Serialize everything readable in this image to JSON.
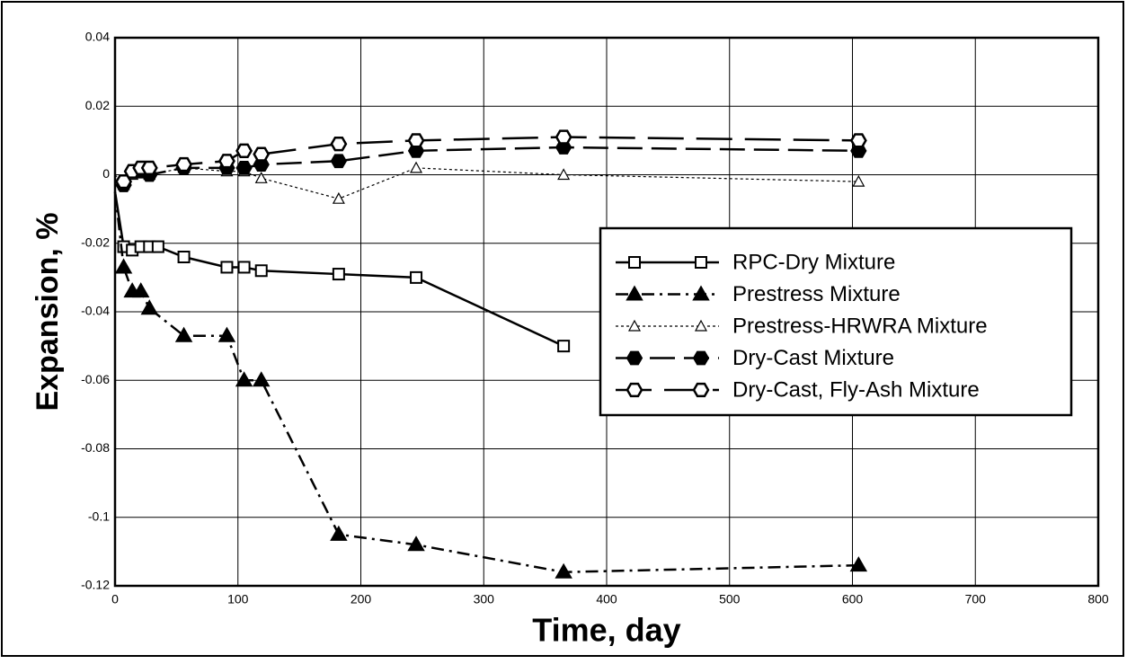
{
  "chart_data": {
    "type": "line",
    "xlabel": "Time, day",
    "ylabel": "Expansion, %",
    "xlim": [
      0,
      800
    ],
    "xticks": [
      0,
      100,
      200,
      300,
      400,
      500,
      600,
      700,
      800
    ],
    "ylim": [
      -0.12,
      0.04
    ],
    "yticks": [
      0.04,
      0.02,
      0,
      -0.02,
      -0.04,
      -0.06,
      -0.08,
      -0.1,
      -0.12
    ],
    "grid": true,
    "legend": "right",
    "series": [
      {
        "name": "RPC-Dry Mixture",
        "color": "#000000",
        "line_style": "solid",
        "marker": "open-square",
        "x": [
          0,
          7,
          14,
          21,
          28,
          35,
          56,
          91,
          105,
          119,
          182,
          245,
          365
        ],
        "values": [
          -0.005,
          -0.021,
          -0.022,
          -0.021,
          -0.021,
          -0.021,
          -0.024,
          -0.027,
          -0.027,
          -0.028,
          -0.029,
          -0.03,
          -0.05
        ]
      },
      {
        "name": "Prestress Mixture",
        "color": "#000000",
        "line_style": "dash-dot",
        "marker": "filled-triangle",
        "x": [
          0,
          7,
          14,
          21,
          28,
          56,
          91,
          105,
          119,
          182,
          245,
          365,
          605
        ],
        "values": [
          -0.005,
          -0.027,
          -0.034,
          -0.034,
          -0.039,
          -0.047,
          -0.047,
          -0.06,
          -0.06,
          -0.105,
          -0.108,
          -0.116,
          -0.114
        ]
      },
      {
        "name": "Prestress-HRWRA Mixture",
        "color": "#000000",
        "line_style": "dotted",
        "marker": "open-triangle",
        "x": [
          0,
          7,
          14,
          21,
          28,
          56,
          91,
          105,
          119,
          182,
          245,
          365,
          605
        ],
        "values": [
          0,
          -0.003,
          0,
          0.001,
          0,
          0.002,
          0.001,
          0.001,
          -0.001,
          -0.007,
          0.002,
          0,
          -0.002
        ]
      },
      {
        "name": "Dry-Cast Mixture",
        "color": "#000000",
        "line_style": "dashed",
        "marker": "filled-hexagon",
        "x": [
          0,
          7,
          14,
          21,
          28,
          56,
          91,
          105,
          119,
          182,
          245,
          365,
          605
        ],
        "values": [
          -0.003,
          -0.003,
          0.001,
          0.001,
          0,
          0.002,
          0.002,
          0.002,
          0.003,
          0.004,
          0.007,
          0.008,
          0.007
        ]
      },
      {
        "name": "Dry-Cast, Fly-Ash Mixture",
        "color": "#000000",
        "line_style": "long-dashed",
        "marker": "open-hexagon",
        "x": [
          7,
          14,
          21,
          28,
          56,
          91,
          105,
          119,
          182,
          245,
          365,
          605
        ],
        "values": [
          -0.002,
          0.001,
          0.002,
          0.002,
          0.003,
          0.004,
          0.007,
          0.006,
          0.009,
          0.01,
          0.011,
          0.01
        ]
      }
    ]
  }
}
